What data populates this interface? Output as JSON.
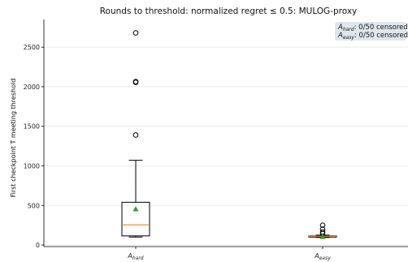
{
  "chart_data": {
    "type": "box",
    "title": "Rounds to threshold: normalized regret  ≤ 0.5: MULOG-proxy",
    "xlabel": "",
    "ylabel": "First checkpoint T meeting threshold",
    "ylim": [
      -20,
      2850
    ],
    "yticks": [
      0,
      500,
      1000,
      1500,
      2000,
      2500
    ],
    "grid": true,
    "categories": [
      {
        "base": "A",
        "sub": "hard"
      },
      {
        "base": "A",
        "sub": "easy"
      }
    ],
    "boxes": [
      {
        "name": "A_hard",
        "whisker_low": 100,
        "q1": 115,
        "median": 255,
        "q3": 540,
        "whisker_high": 1070,
        "mean": 455,
        "outliers": [
          1390,
          2055,
          2065,
          2680
        ]
      },
      {
        "name": "A_easy",
        "whisker_low": 95,
        "q1": 100,
        "median": 110,
        "q3": 115,
        "whisker_high": 125,
        "mean": 105,
        "outliers": [
          145,
          165,
          200,
          250
        ]
      }
    ],
    "annotation": {
      "placement": "top-right",
      "lines": [
        {
          "base": "A",
          "sub": "hard",
          "text": ": 0/50 censored"
        },
        {
          "base": "A",
          "sub": "easy",
          "text": ": 0/50 censored"
        }
      ]
    },
    "colors": {
      "box": "#000000",
      "median": "#ff7f0e",
      "mean": "#2ca02c",
      "grid": "#e6e6e6",
      "annotation_bg": "#dfe6ee"
    }
  }
}
